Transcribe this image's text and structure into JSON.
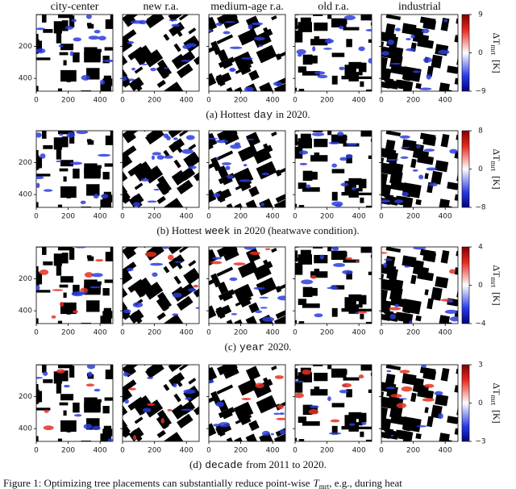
{
  "columns": [
    "city-center",
    "new r.a.",
    "medium-age r.a.",
    "old r.a.",
    "industrial"
  ],
  "xlim": [
    0,
    480
  ],
  "ylim": [
    0,
    480
  ],
  "x_ticks": [
    0,
    200,
    400
  ],
  "y_ticks": [
    200,
    400
  ],
  "colorbar_label": {
    "symbol": "ΔT",
    "subscript": "mrt",
    "unit": "[K]"
  },
  "rows": [
    {
      "caption": {
        "prefix": "(a) Hottest",
        "keyword": "day",
        "suffix": "in 2020."
      },
      "clim": [
        -9,
        9
      ],
      "colorbar_ticks": [
        9,
        0,
        {
          "value": -9,
          "label": "−9"
        }
      ]
    },
    {
      "caption": {
        "prefix": "(b) Hottest",
        "keyword": "week",
        "suffix": "in 2020 (heatwave condition)."
      },
      "clim": [
        -8,
        8
      ],
      "colorbar_ticks": [
        8,
        0,
        {
          "value": -8,
          "label": "−8"
        }
      ]
    },
    {
      "caption": {
        "prefix": "(c)",
        "keyword": "year",
        "suffix": "2020."
      },
      "clim": [
        -4,
        4
      ],
      "colorbar_ticks": [
        4,
        0,
        {
          "value": -4,
          "label": "−4"
        }
      ]
    },
    {
      "caption": {
        "prefix": "(d)",
        "keyword": "decade",
        "suffix": "from 2011 to 2020."
      },
      "clim": [
        -3,
        3
      ],
      "colorbar_ticks": [
        3,
        0,
        {
          "value": -3,
          "label": "−3"
        }
      ]
    }
  ],
  "figure_caption": {
    "text": "Figure 1: Optimizing tree placements can substantially reduce point-wise",
    "symbol": "T",
    "subscript": "mrt",
    "rest": ", e.g., during heat"
  }
}
